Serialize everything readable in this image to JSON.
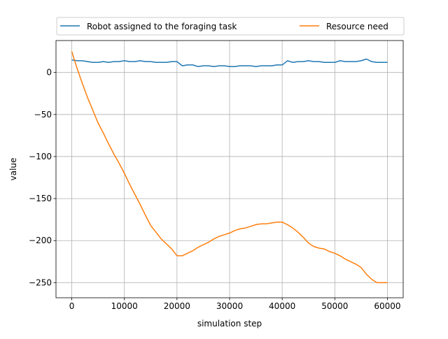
{
  "chart_data": {
    "type": "line",
    "title": "",
    "xlabel": "simulation step",
    "ylabel": "value",
    "xlim": [
      -3000,
      63000
    ],
    "ylim": [
      -268,
      38
    ],
    "xticks": [
      0,
      10000,
      20000,
      30000,
      40000,
      50000,
      60000
    ],
    "xtick_labels": [
      "0",
      "10000",
      "20000",
      "30000",
      "40000",
      "50000",
      "60000"
    ],
    "yticks": [
      0,
      -50,
      -100,
      -150,
      -200,
      -250
    ],
    "ytick_labels": [
      "0",
      "−50",
      "−100",
      "−150",
      "−200",
      "−250"
    ],
    "grid": true,
    "legend_position": "top, outside plot, 2 columns",
    "series": [
      {
        "name": "Robot assigned to the foraging task",
        "color": "#1f77b4",
        "x": [
          0,
          1000,
          2000,
          3000,
          4000,
          5000,
          6000,
          7000,
          8000,
          9000,
          10000,
          11000,
          12000,
          13000,
          14000,
          15000,
          16000,
          17000,
          18000,
          19000,
          20000,
          21000,
          22000,
          23000,
          24000,
          25000,
          26000,
          27000,
          28000,
          29000,
          30000,
          31000,
          32000,
          33000,
          34000,
          35000,
          36000,
          37000,
          38000,
          39000,
          40000,
          41000,
          42000,
          43000,
          44000,
          45000,
          46000,
          47000,
          48000,
          49000,
          50000,
          51000,
          52000,
          53000,
          54000,
          55000,
          56000,
          57000,
          58000,
          59000,
          60000
        ],
        "y": [
          15,
          14,
          14,
          13,
          12,
          12,
          13,
          12,
          13,
          13,
          14,
          13,
          13,
          14,
          13,
          13,
          12,
          12,
          12,
          13,
          13,
          8,
          9,
          9,
          7,
          8,
          8,
          7,
          8,
          8,
          7,
          7,
          8,
          8,
          8,
          7,
          8,
          8,
          8,
          9,
          9,
          14,
          12,
          13,
          13,
          14,
          13,
          13,
          12,
          12,
          12,
          14,
          13,
          13,
          13,
          14,
          16,
          13,
          12,
          12,
          12
        ]
      },
      {
        "name": "Resource need",
        "color": "#ff7f0e",
        "x": [
          0,
          1000,
          2000,
          3000,
          4000,
          5000,
          6000,
          7000,
          8000,
          9000,
          10000,
          11000,
          12000,
          13000,
          14000,
          15000,
          16000,
          17000,
          18000,
          19000,
          20000,
          21000,
          22000,
          23000,
          24000,
          25000,
          26000,
          27000,
          28000,
          29000,
          30000,
          31000,
          32000,
          33000,
          34000,
          35000,
          36000,
          37000,
          38000,
          39000,
          40000,
          41000,
          42000,
          43000,
          44000,
          45000,
          46000,
          47000,
          48000,
          49000,
          50000,
          51000,
          52000,
          53000,
          54000,
          55000,
          56000,
          57000,
          58000,
          59000,
          60000
        ],
        "y": [
          25,
          5,
          -13,
          -30,
          -45,
          -60,
          -72,
          -85,
          -97,
          -108,
          -120,
          -133,
          -145,
          -157,
          -170,
          -182,
          -190,
          -198,
          -204,
          -210,
          -218,
          -218,
          -215,
          -212,
          -208,
          -205,
          -202,
          -198,
          -195,
          -193,
          -191,
          -188,
          -186,
          -185,
          -183,
          -181,
          -180,
          -180,
          -179,
          -178,
          -178,
          -181,
          -185,
          -190,
          -196,
          -203,
          -207,
          -209,
          -210,
          -213,
          -215,
          -218,
          -222,
          -225,
          -228,
          -232,
          -240,
          -246,
          -250,
          -250,
          -250
        ]
      }
    ]
  }
}
